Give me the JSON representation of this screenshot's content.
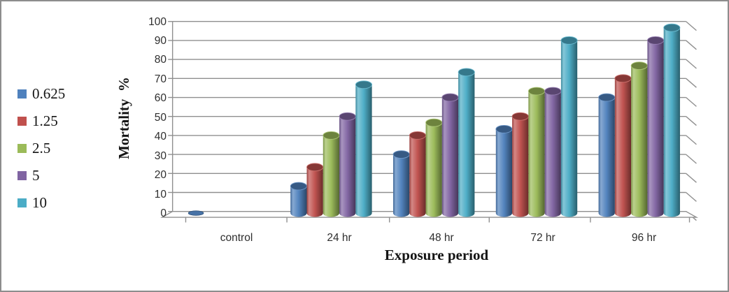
{
  "window": {
    "background": "#ffffff",
    "border_color": "#8d8d8d"
  },
  "chart_data": {
    "type": "bar",
    "subtype": "3d-cylinder",
    "title": "",
    "xlabel": "Exposure period",
    "ylabel": "Mortality  %",
    "categories": [
      "control",
      "24 hr",
      "48 hr",
      "72 hr",
      "96 hr"
    ],
    "ylim": [
      0,
      100
    ],
    "yticks": [
      0,
      10,
      20,
      30,
      40,
      50,
      60,
      70,
      80,
      90,
      100
    ],
    "grid": true,
    "legend_position": "left",
    "axis_color": "#8f8f8f",
    "series": [
      {
        "name": "0.625",
        "color": "#4F81BD",
        "values": [
          0,
          13.3,
          30,
          43.3,
          60
        ]
      },
      {
        "name": "1.25",
        "color": "#C0504D",
        "values": [
          null,
          23.3,
          40,
          50,
          70
        ]
      },
      {
        "name": "2.5",
        "color": "#9BBB59",
        "values": [
          null,
          40,
          46.7,
          63.3,
          76.7
        ]
      },
      {
        "name": "5",
        "color": "#8064A2",
        "values": [
          null,
          50,
          60,
          63.3,
          90
        ]
      },
      {
        "name": "10",
        "color": "#4BACC6",
        "values": [
          null,
          66.7,
          73.3,
          90,
          96.7
        ]
      }
    ]
  }
}
